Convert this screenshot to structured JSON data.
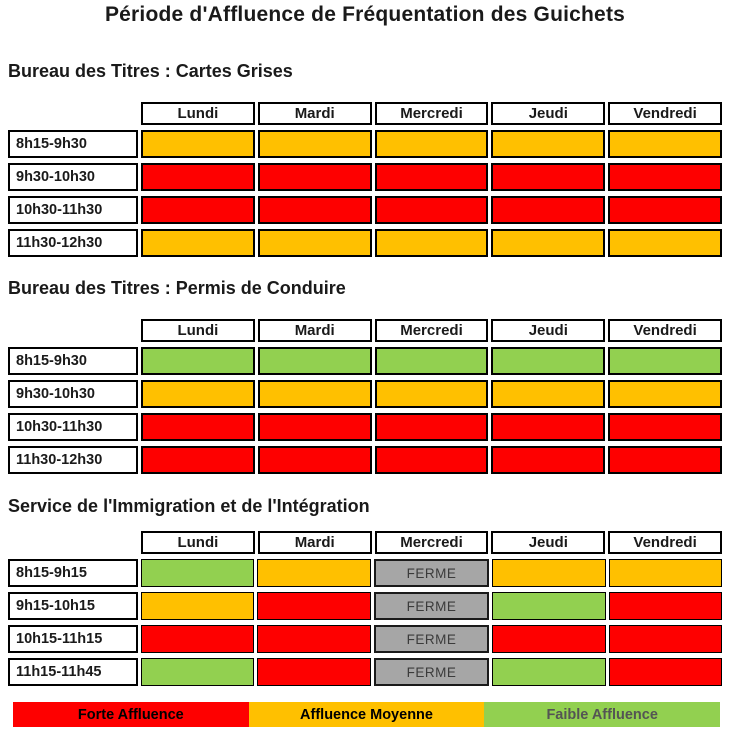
{
  "title": "Période d'Affluence de Fréquentation des Guichets",
  "ferme_label": "FERME",
  "colors": {
    "red": "#FE0000",
    "orange": "#FFC000",
    "green": "#92D050",
    "gray": "#A6A6A6"
  },
  "days": [
    "Lundi",
    "Mardi",
    "Mercredi",
    "Jeudi",
    "Vendredi"
  ],
  "sections": [
    {
      "heading": "Bureau des Titres : Cartes Grises",
      "rows": [
        {
          "label": "8h15-9h30",
          "cells": [
            "orange",
            "orange",
            "orange",
            "orange",
            "orange"
          ]
        },
        {
          "label": "9h30-10h30",
          "cells": [
            "red",
            "red",
            "red",
            "red",
            "red"
          ]
        },
        {
          "label": "10h30-11h30",
          "cells": [
            "red",
            "red",
            "red",
            "red",
            "red"
          ]
        },
        {
          "label": "11h30-12h30",
          "cells": [
            "orange",
            "orange",
            "orange",
            "orange",
            "orange"
          ]
        }
      ]
    },
    {
      "heading": "Bureau des Titres : Permis de Conduire",
      "rows": [
        {
          "label": "8h15-9h30",
          "cells": [
            "green",
            "green",
            "green",
            "green",
            "green"
          ]
        },
        {
          "label": "9h30-10h30",
          "cells": [
            "orange",
            "orange",
            "orange",
            "orange",
            "orange"
          ]
        },
        {
          "label": "10h30-11h30",
          "cells": [
            "red",
            "red",
            "red",
            "red",
            "red"
          ]
        },
        {
          "label": "11h30-12h30",
          "cells": [
            "red",
            "red",
            "red",
            "red",
            "red"
          ]
        }
      ]
    },
    {
      "heading": "Service de l'Immigration et de l'Intégration",
      "rows": [
        {
          "label": "8h15-9h15",
          "cells": [
            "green",
            "orange",
            "ferme",
            "orange",
            "orange"
          ]
        },
        {
          "label": "9h15-10h15",
          "cells": [
            "orange",
            "red",
            "ferme",
            "green",
            "red"
          ]
        },
        {
          "label": "10h15-11h15",
          "cells": [
            "red",
            "red",
            "ferme",
            "red",
            "red"
          ]
        },
        {
          "label": "11h15-11h45",
          "cells": [
            "green",
            "red",
            "ferme",
            "green",
            "red"
          ]
        }
      ]
    }
  ],
  "legend": [
    {
      "label": "Forte Affluence",
      "color": "red",
      "text_color": "#000000"
    },
    {
      "label": "Affluence Moyenne",
      "color": "orange",
      "text_color": "#000000"
    },
    {
      "label": "Faible Affluence",
      "color": "green",
      "text_color": "#545454"
    }
  ]
}
